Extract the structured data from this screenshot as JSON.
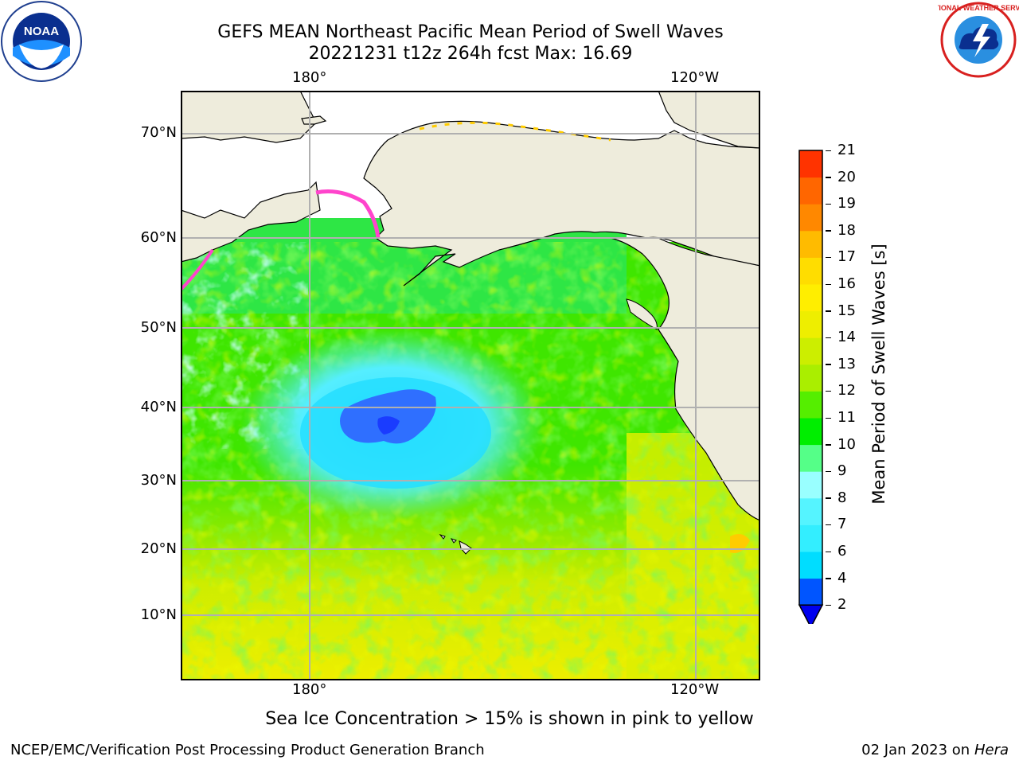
{
  "title": {
    "line1": "GEFS MEAN Northeast Pacific Mean Period of Swell Waves",
    "line2": "20221231 t12z 264h fcst   Max: 16.69"
  },
  "logos": {
    "left": {
      "name": "noaa-logo",
      "text": "NOAA"
    },
    "right": {
      "name": "national-weather-service-logo",
      "text": "NATIONAL WEATHER SERVICE"
    }
  },
  "map": {
    "lon_labels_top": [
      "180°",
      "120°W"
    ],
    "lon_labels_bottom": [
      "180°",
      "120°W"
    ],
    "lat_labels": [
      "70°N",
      "60°N",
      "50°N",
      "40°N",
      "30°N",
      "20°N",
      "10°N"
    ],
    "land_color": "#eeecdc",
    "grid_color": "#b0b0b0",
    "regions": [
      "Alaska",
      "Bering Sea",
      "Gulf of Alaska",
      "North Pacific",
      "Hawaii",
      "US West Coast"
    ],
    "ice_colors": [
      "#ff44cc",
      "#ffaa00",
      "#ffee00"
    ]
  },
  "colorbar": {
    "label": "Mean Period of Swell Waves [s]",
    "ticks": [
      "2",
      "4",
      "6",
      "7",
      "8",
      "9",
      "10",
      "11",
      "12",
      "13",
      "14",
      "15",
      "16",
      "17",
      "18",
      "19",
      "20",
      "21"
    ],
    "colors": [
      "#0055ff",
      "#00ddff",
      "#33eeff",
      "#55f4ff",
      "#99ffff",
      "#55ff88",
      "#00ee00",
      "#55ee00",
      "#aaee00",
      "#ccee00",
      "#eeee00",
      "#ffee00",
      "#ffdd00",
      "#ffbb00",
      "#ff8800",
      "#ff6600",
      "#ff3300"
    ],
    "extend_color": "#0000ee",
    "label_min": 2,
    "label_max": 21
  },
  "note": "Sea Ice Concentration > 15% is shown in pink to yellow",
  "footer": {
    "left": "NCEP/EMC/Verification Post Processing Product Generation Branch",
    "date": "02 Jan 2023 on ",
    "machine": "Hera"
  }
}
